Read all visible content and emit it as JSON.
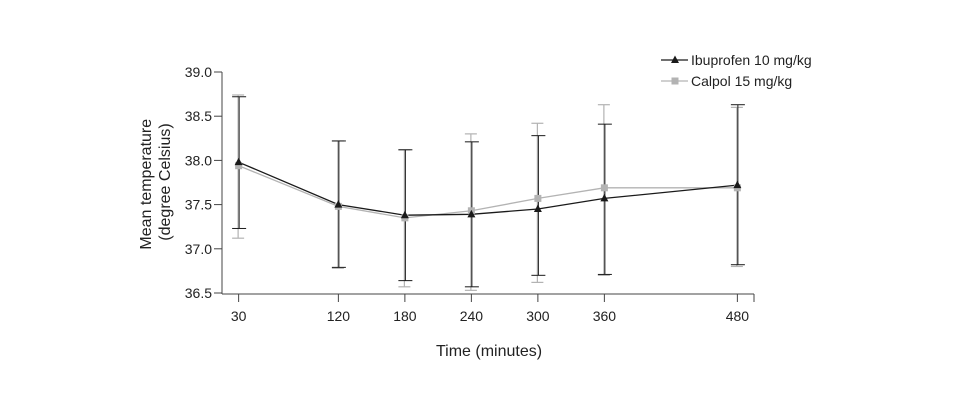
{
  "chart_data": {
    "type": "line",
    "title": "",
    "xlabel": "Time (minutes)",
    "ylabel_lines": [
      "Mean temperature",
      "(degree Celsius)"
    ],
    "xlim": [
      15,
      495
    ],
    "ylim": [
      36.5,
      39.0
    ],
    "x_ticks": [
      30,
      120,
      180,
      240,
      300,
      360,
      480
    ],
    "x_tick_labels": [
      "30",
      "120",
      "180",
      "240",
      "300",
      "360",
      "480"
    ],
    "y_ticks": [
      36.5,
      37.0,
      37.5,
      38.0,
      38.5,
      39.0
    ],
    "y_tick_labels": [
      "36.5",
      "37.0",
      "37.5",
      "38.0",
      "38.5",
      "39.0"
    ],
    "grid": false,
    "legend_position": "top-right",
    "series": [
      {
        "name": "Ibuprofen 10 mg/kg",
        "color": "#1a1a1a",
        "marker": "triangle",
        "x": [
          30,
          120,
          180,
          240,
          300,
          360,
          480
        ],
        "y": [
          37.98,
          37.5,
          37.38,
          37.39,
          37.45,
          37.57,
          37.72
        ],
        "err_low": [
          37.23,
          36.79,
          36.64,
          36.57,
          36.7,
          36.71,
          36.82
        ],
        "err_high": [
          38.72,
          38.22,
          38.12,
          38.21,
          38.28,
          38.41,
          38.63
        ]
      },
      {
        "name": "Calpol 15 mg/kg",
        "color": "#b3b3b3",
        "marker": "square",
        "x": [
          30,
          120,
          180,
          240,
          300,
          360,
          480
        ],
        "y": [
          37.94,
          37.48,
          37.35,
          37.43,
          37.57,
          37.69,
          37.69
        ],
        "err_low": [
          37.12,
          36.78,
          36.57,
          36.53,
          36.62,
          36.7,
          36.8
        ],
        "err_high": [
          38.74,
          38.22,
          38.12,
          38.3,
          38.42,
          38.63,
          38.6
        ]
      }
    ]
  }
}
